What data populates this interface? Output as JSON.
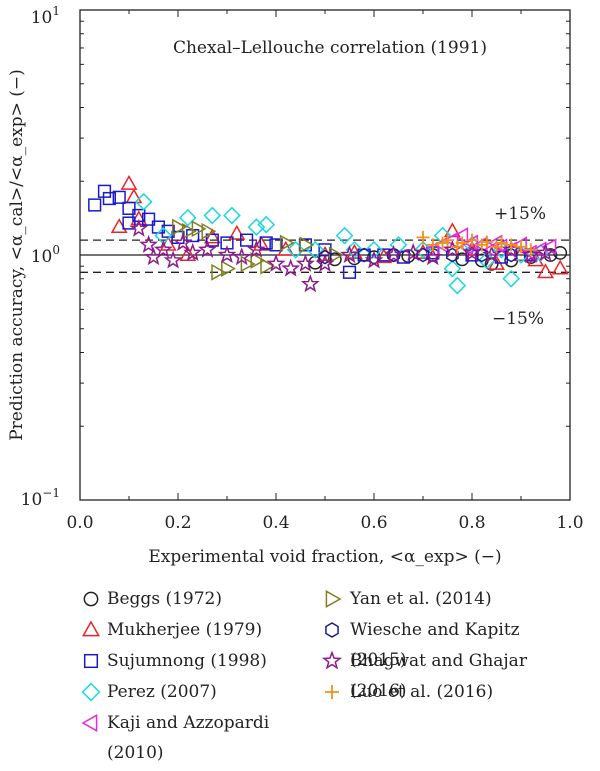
{
  "chart_data": {
    "type": "scatter",
    "title": "Chexal–Lellouche correlation (1991)",
    "xlabel": "Experimental void fraction, <α_exp> (−)",
    "ylabel": "Prediction accuracy, <α_cal>/<α_exp> (−)",
    "xlim": [
      0.0,
      1.0
    ],
    "ylim": [
      0.1,
      10
    ],
    "yscale": "log",
    "xticks": [
      "0.0",
      "0.2",
      "0.4",
      "0.6",
      "0.8",
      "1.0"
    ],
    "yticks": [
      {
        "value": 0.1,
        "base": "10",
        "exp": "−1"
      },
      {
        "value": 1,
        "base": "10",
        "exp": "0"
      },
      {
        "value": 10,
        "base": "10",
        "exp": "1"
      }
    ],
    "reference_lines": [
      {
        "label": "",
        "value": 1.0,
        "style": "solid"
      },
      {
        "label": "+15%",
        "value": 1.15,
        "style": "dashed"
      },
      {
        "label": "−15%",
        "value": 0.85,
        "style": "dashed"
      }
    ],
    "series": [
      {
        "name": "Beggs (1972)",
        "marker": "circle",
        "color": "#222222",
        "points": [
          [
            0.48,
            0.93
          ],
          [
            0.52,
            0.96
          ],
          [
            0.56,
            0.97
          ],
          [
            0.6,
            0.98
          ],
          [
            0.64,
            1.0
          ],
          [
            0.67,
            0.99
          ],
          [
            0.72,
            1.0
          ],
          [
            0.78,
            0.96
          ],
          [
            0.82,
            0.95
          ],
          [
            0.84,
            0.92
          ],
          [
            0.88,
            0.95
          ],
          [
            0.92,
            0.98
          ],
          [
            0.96,
            1.0
          ],
          [
            0.98,
            1.02
          ]
        ]
      },
      {
        "name": "Mukherjee (1979)",
        "marker": "triangle-up",
        "color": "#e8242a",
        "points": [
          [
            0.08,
            1.3
          ],
          [
            0.1,
            1.95
          ],
          [
            0.11,
            1.72
          ],
          [
            0.12,
            1.4
          ],
          [
            0.18,
            1.1
          ],
          [
            0.22,
            1.0
          ],
          [
            0.27,
            1.18
          ],
          [
            0.32,
            1.22
          ],
          [
            0.37,
            1.1
          ],
          [
            0.42,
            1.05
          ],
          [
            0.5,
            1.0
          ],
          [
            0.56,
            1.02
          ],
          [
            0.62,
            0.98
          ],
          [
            0.7,
            1.02
          ],
          [
            0.76,
            1.25
          ],
          [
            0.8,
            1.05
          ],
          [
            0.85,
            0.92
          ],
          [
            0.9,
            1.0
          ],
          [
            0.93,
            0.95
          ],
          [
            0.95,
            0.85
          ],
          [
            0.98,
            0.88
          ]
        ]
      },
      {
        "name": "Sujumnong (1998)",
        "marker": "square",
        "color": "#1a1ac8",
        "points": [
          [
            0.03,
            1.6
          ],
          [
            0.05,
            1.82
          ],
          [
            0.06,
            1.7
          ],
          [
            0.08,
            1.72
          ],
          [
            0.1,
            1.55
          ],
          [
            0.1,
            1.35
          ],
          [
            0.12,
            1.45
          ],
          [
            0.14,
            1.4
          ],
          [
            0.16,
            1.3
          ],
          [
            0.18,
            1.25
          ],
          [
            0.2,
            1.18
          ],
          [
            0.23,
            1.2
          ],
          [
            0.27,
            1.15
          ],
          [
            0.3,
            1.12
          ],
          [
            0.34,
            1.15
          ],
          [
            0.38,
            1.12
          ],
          [
            0.4,
            1.1
          ],
          [
            0.46,
            1.1
          ],
          [
            0.5,
            1.05
          ],
          [
            0.55,
            0.85
          ],
          [
            0.58,
            1.0
          ],
          [
            0.62,
            1.0
          ],
          [
            0.66,
            0.98
          ],
          [
            0.72,
            1.02
          ],
          [
            0.8,
            1.0
          ],
          [
            0.86,
            0.98
          ],
          [
            0.92,
            1.0
          ]
        ]
      },
      {
        "name": "Perez (2007)",
        "marker": "diamond",
        "color": "#18d8e0",
        "points": [
          [
            0.13,
            1.65
          ],
          [
            0.17,
            1.2
          ],
          [
            0.22,
            1.42
          ],
          [
            0.27,
            1.45
          ],
          [
            0.31,
            1.45
          ],
          [
            0.36,
            1.3
          ],
          [
            0.38,
            1.33
          ],
          [
            0.44,
            1.05
          ],
          [
            0.48,
            1.05
          ],
          [
            0.54,
            1.2
          ],
          [
            0.56,
            1.05
          ],
          [
            0.6,
            1.05
          ],
          [
            0.65,
            1.1
          ],
          [
            0.7,
            1.05
          ],
          [
            0.74,
            1.2
          ],
          [
            0.76,
            0.88
          ],
          [
            0.77,
            0.75
          ],
          [
            0.8,
            1.1
          ],
          [
            0.83,
            0.95
          ],
          [
            0.86,
            1.05
          ],
          [
            0.88,
            0.8
          ],
          [
            0.9,
            1.0
          ],
          [
            0.94,
            1.02
          ]
        ]
      },
      {
        "name": "Kaji and Azzopardi (2010)",
        "marker": "triangle-left",
        "color": "#e828e0",
        "points": [
          [
            0.72,
            1.05
          ],
          [
            0.74,
            1.1
          ],
          [
            0.76,
            1.15
          ],
          [
            0.78,
            1.2
          ],
          [
            0.79,
            1.08
          ],
          [
            0.8,
            1.12
          ],
          [
            0.82,
            1.1
          ],
          [
            0.84,
            1.05
          ],
          [
            0.85,
            1.12
          ],
          [
            0.86,
            1.08
          ],
          [
            0.88,
            1.05
          ],
          [
            0.9,
            1.1
          ],
          [
            0.92,
            1.02
          ],
          [
            0.94,
            1.05
          ],
          [
            0.96,
            1.08
          ]
        ]
      },
      {
        "name": "Yan et al. (2014)",
        "marker": "triangle-right",
        "color": "#808020",
        "points": [
          [
            0.2,
            1.3
          ],
          [
            0.22,
            1.25
          ],
          [
            0.24,
            1.28
          ],
          [
            0.26,
            1.25
          ],
          [
            0.28,
            0.85
          ],
          [
            0.3,
            0.88
          ],
          [
            0.34,
            0.92
          ],
          [
            0.36,
            0.95
          ],
          [
            0.38,
            0.9
          ],
          [
            0.42,
            1.12
          ],
          [
            0.46,
            1.1
          ],
          [
            0.52,
            1.0
          ]
        ]
      },
      {
        "name": "Wiesche and Kapitz (2015)",
        "marker": "hexagon",
        "color": "#1a1a8c",
        "points": [
          [
            0.5,
            0.98
          ],
          [
            0.58,
            1.0
          ],
          [
            0.64,
            1.0
          ],
          [
            0.7,
            1.0
          ],
          [
            0.76,
            1.0
          ],
          [
            0.82,
            1.0
          ],
          [
            0.88,
            1.0
          ]
        ]
      },
      {
        "name": "Bhagwat and Ghajar (2016)",
        "marker": "star",
        "color": "#8c1a8c",
        "points": [
          [
            0.12,
            1.28
          ],
          [
            0.14,
            1.1
          ],
          [
            0.15,
            0.98
          ],
          [
            0.17,
            1.05
          ],
          [
            0.19,
            0.95
          ],
          [
            0.21,
            1.12
          ],
          [
            0.23,
            1.02
          ],
          [
            0.26,
            1.05
          ],
          [
            0.3,
            1.0
          ],
          [
            0.33,
            0.98
          ],
          [
            0.36,
            1.05
          ],
          [
            0.4,
            0.92
          ],
          [
            0.43,
            0.88
          ],
          [
            0.46,
            0.92
          ],
          [
            0.47,
            0.76
          ],
          [
            0.5,
            0.92
          ],
          [
            0.55,
            1.0
          ],
          [
            0.6,
            0.95
          ],
          [
            0.64,
            1.0
          ],
          [
            0.68,
            1.02
          ],
          [
            0.72,
            0.98
          ],
          [
            0.76,
            1.05
          ],
          [
            0.8,
            1.02
          ],
          [
            0.84,
            1.0
          ],
          [
            0.88,
            1.05
          ],
          [
            0.92,
            1.0
          ],
          [
            0.95,
            1.02
          ]
        ]
      },
      {
        "name": "Luo et al. (2016)",
        "marker": "plus",
        "color": "#f0921a",
        "points": [
          [
            0.7,
            1.18
          ],
          [
            0.72,
            1.1
          ],
          [
            0.74,
            1.12
          ],
          [
            0.75,
            1.15
          ],
          [
            0.77,
            1.08
          ],
          [
            0.78,
            1.12
          ],
          [
            0.8,
            1.15
          ],
          [
            0.82,
            1.1
          ],
          [
            0.83,
            1.13
          ],
          [
            0.85,
            1.08
          ],
          [
            0.86,
            1.12
          ],
          [
            0.88,
            1.1
          ],
          [
            0.9,
            1.08
          ],
          [
            0.92,
            1.05
          ]
        ]
      }
    ],
    "legend_position": "bottom"
  }
}
